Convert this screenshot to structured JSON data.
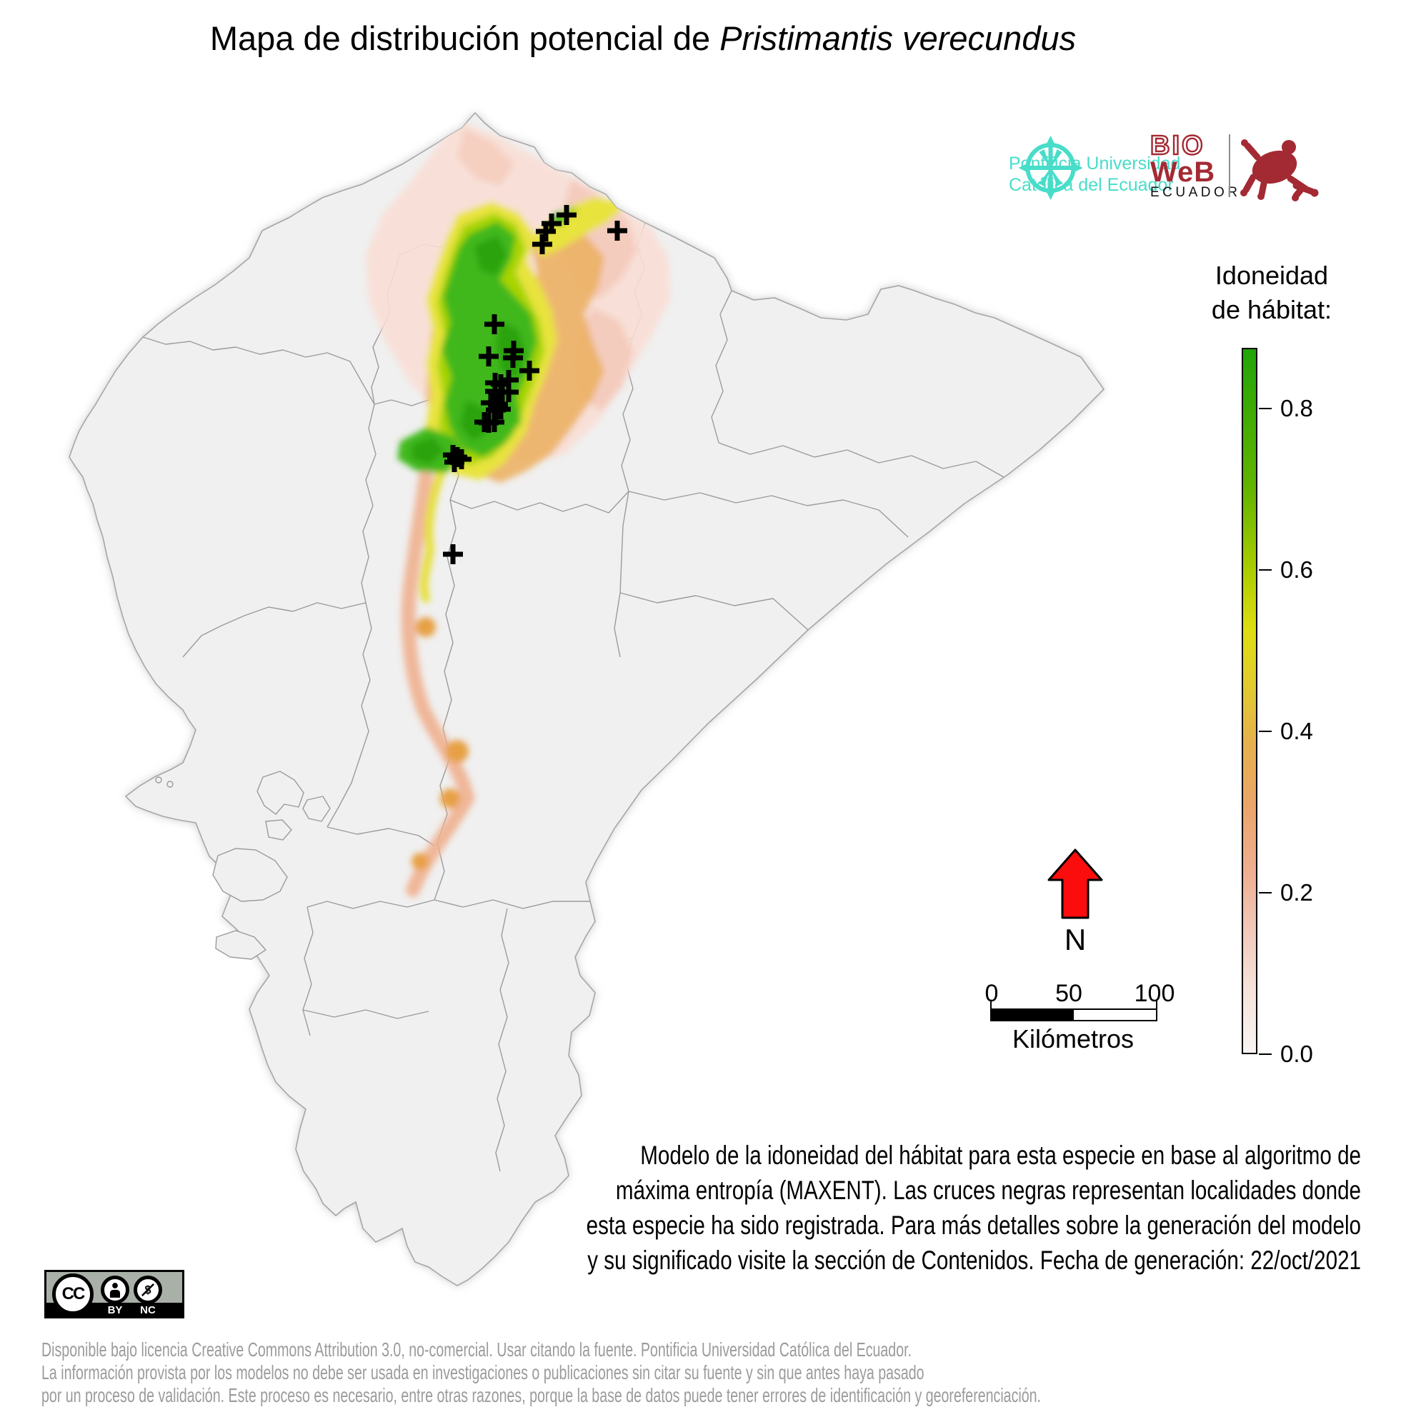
{
  "title": {
    "prefix": "Mapa de distribución potencial de ",
    "species": "Pristimantis verecundus"
  },
  "logos": {
    "puce": {
      "line1": "Pontificia Universidad",
      "line2": "Católica del Ecuador",
      "color": "#47ddc9"
    },
    "bioweb": {
      "bio": "BIO",
      "web": "WeB",
      "ecuador": "ECUADOR",
      "color": "#a32a33"
    }
  },
  "legend": {
    "title_line1": "Idoneidad",
    "title_line2": "de hábitat:",
    "max_value": 0.875,
    "ticks": [
      "0.8",
      "0.6",
      "0.4",
      "0.2",
      "0.0"
    ],
    "gradient_stops": [
      "#f9f5f3 0%",
      "#f6e3da 9%",
      "#f2cabc 17%",
      "#efae8f 26%",
      "#eaa569 35%",
      "#e6b14d 44%",
      "#e1cd2b 53%",
      "#dede12 60%",
      "#a9cc00 69%",
      "#63b500 80%",
      "#21a407 100%"
    ]
  },
  "north_arrow": {
    "label": "N",
    "color": "#fb0d0d"
  },
  "scale_bar": {
    "labels": [
      "0",
      "50",
      "100"
    ],
    "unit": "Kilómetros"
  },
  "description": {
    "lines": [
      "Modelo de la idoneidad del hábitat para esta especie en base al algoritmo de",
      "máxima entropía (MAXENT). Las cruces negras representan localidades donde",
      "esta especie ha sido registrada. Para más detalles sobre la generación del modelo",
      "y su significado visite la sección de Contenidos. Fecha de generación: 22/oct/2021"
    ]
  },
  "license": {
    "cc": "CC",
    "by": "BY",
    "nc": "NC"
  },
  "footer": {
    "lines": [
      "Disponible bajo licencia Creative Commons Attribution 3.0, no-comercial. Usar citando la fuente. Pontificia Universidad Católica del Ecuador.",
      "La información provista por los modelos no debe ser usada en investigaciones o publicaciones sin citar su fuente y sin que antes haya pasado",
      "por un proceso de validación. Este proceso es necesario, entre otras razones, porque la base de datos puede tener errores de identificación y georeferenciación."
    ]
  },
  "map": {
    "background_color": "#f0f0f0",
    "border_color": "#9b9b9b",
    "suitability_colors": {
      "high_green": "#2aa30e",
      "green": "#3fb81b",
      "yellow_green": "#a8d400",
      "yellow": "#e8e33c",
      "gold": "#ecb165",
      "salmon": "#efb08f",
      "pink": "#f3c7b6",
      "pale_pink": "#f8ded5"
    },
    "crosses": [
      [
        793,
        301
      ],
      [
        772,
        313
      ],
      [
        764,
        324
      ],
      [
        759,
        342
      ],
      [
        864,
        323
      ],
      [
        692,
        454
      ],
      [
        719,
        491
      ],
      [
        718,
        501
      ],
      [
        684,
        499
      ],
      [
        741,
        519
      ],
      [
        712,
        532
      ],
      [
        693,
        536
      ],
      [
        701,
        538
      ],
      [
        693,
        548
      ],
      [
        703,
        549
      ],
      [
        712,
        549
      ],
      [
        687,
        564
      ],
      [
        697,
        566
      ],
      [
        701,
        573
      ],
      [
        694,
        574
      ],
      [
        678,
        591
      ],
      [
        684,
        592
      ],
      [
        692,
        591
      ],
      [
        634,
        637
      ],
      [
        640,
        640
      ],
      [
        646,
        643
      ],
      [
        636,
        647
      ],
      [
        634,
        776
      ]
    ]
  }
}
